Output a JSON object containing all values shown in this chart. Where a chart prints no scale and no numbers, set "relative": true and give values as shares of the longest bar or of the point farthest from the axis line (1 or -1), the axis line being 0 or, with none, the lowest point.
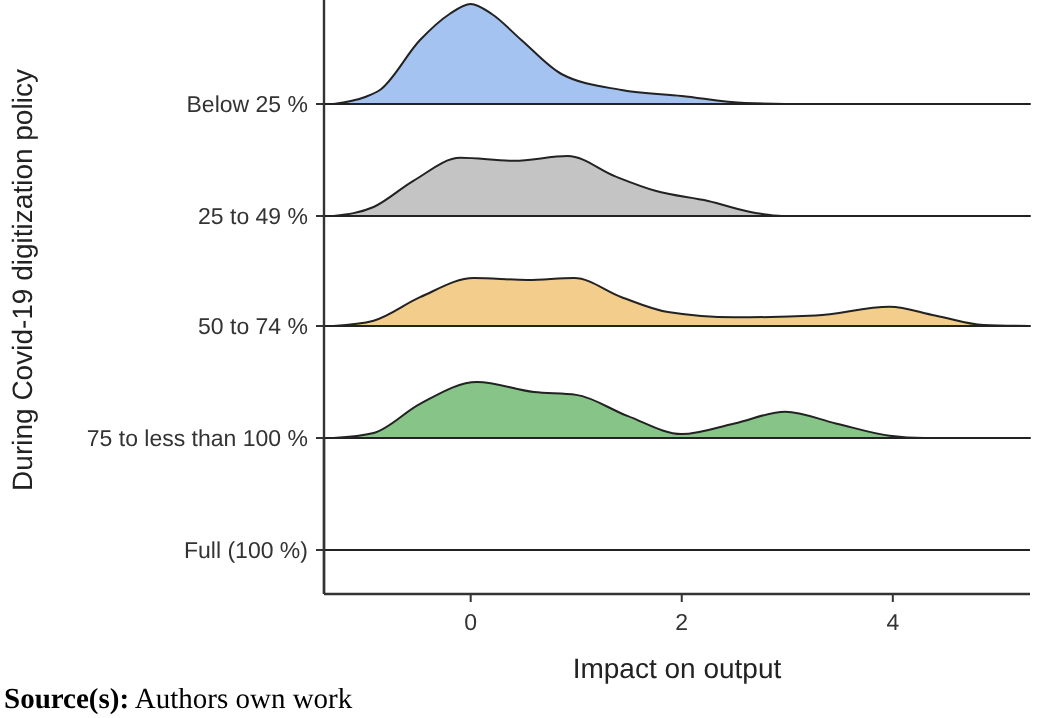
{
  "chart_data": [
    {
      "type": "area",
      "relative": true,
      "ylabel": "Below 25 %",
      "xlim": [
        -1.39,
        5.3
      ],
      "tick_labels": false,
      "annotations": [
        "During Covid-19 digitization policy"
      ],
      "series": [
        {
          "color": "#a4c3f0",
          "x": [
            -1.3,
            -1.0,
            -0.86,
            -0.48,
            -0.2,
            0,
            0.2,
            0.48,
            0.86,
            1.43,
            2,
            2.6,
            3.2,
            5.3
          ],
          "values": [
            0,
            0.07,
            0.14,
            0.64,
            0.9,
            1,
            0.9,
            0.64,
            0.3,
            0.14,
            0.08,
            0.01,
            0,
            0
          ]
        }
      ]
    },
    {
      "type": "area",
      "relative": true,
      "ylabel": "25 to 49 %",
      "xlim": [
        -1.39,
        5.3
      ],
      "tick_labels": false,
      "series": [
        {
          "color": "#c4c4c4",
          "x": [
            -1.3,
            -0.92,
            -0.54,
            -0.1,
            0.41,
            0.92,
            1.37,
            1.75,
            2.25,
            2.7,
            2.95,
            5.3
          ],
          "values": [
            0,
            0.15,
            0.59,
            0.97,
            0.92,
            1,
            0.66,
            0.42,
            0.25,
            0.05,
            0,
            0
          ]
        }
      ]
    },
    {
      "type": "area",
      "relative": true,
      "ylabel": "50 to 74 %",
      "xlim": [
        -1.39,
        5.3
      ],
      "tick_labels": false,
      "series": [
        {
          "color": "#f2cd8b",
          "x": [
            -1.3,
            -0.92,
            -0.48,
            0.03,
            0.54,
            0.98,
            1.43,
            1.87,
            2.5,
            3.27,
            3.97,
            4.4,
            4.86,
            5.3
          ],
          "values": [
            0,
            0.11,
            0.6,
            1,
            0.96,
            1,
            0.6,
            0.29,
            0.18,
            0.22,
            0.4,
            0.22,
            0.02,
            0
          ]
        }
      ]
    },
    {
      "type": "area",
      "relative": true,
      "ylabel": "75 to less than 100 %",
      "xlabel": "Impact on output",
      "xlim": [
        -1.39,
        5.3
      ],
      "xticks": [
        0,
        2,
        4
      ],
      "tick_labels": "x",
      "series": [
        {
          "color": "#86c487",
          "x": [
            -1.3,
            -0.92,
            -0.48,
            0.06,
            0.6,
            1.0,
            1.49,
            2.0,
            2.5,
            2.98,
            3.46,
            3.97,
            4.3,
            5.3
          ],
          "values": [
            0,
            0.09,
            0.61,
            1,
            0.82,
            0.77,
            0.39,
            0.07,
            0.26,
            0.47,
            0.26,
            0.04,
            0,
            0
          ]
        }
      ]
    },
    {
      "type": "other",
      "ylabel": "Full (100 %)",
      "annotations": [
        "Source(s): Authors own work"
      ]
    }
  ]
}
